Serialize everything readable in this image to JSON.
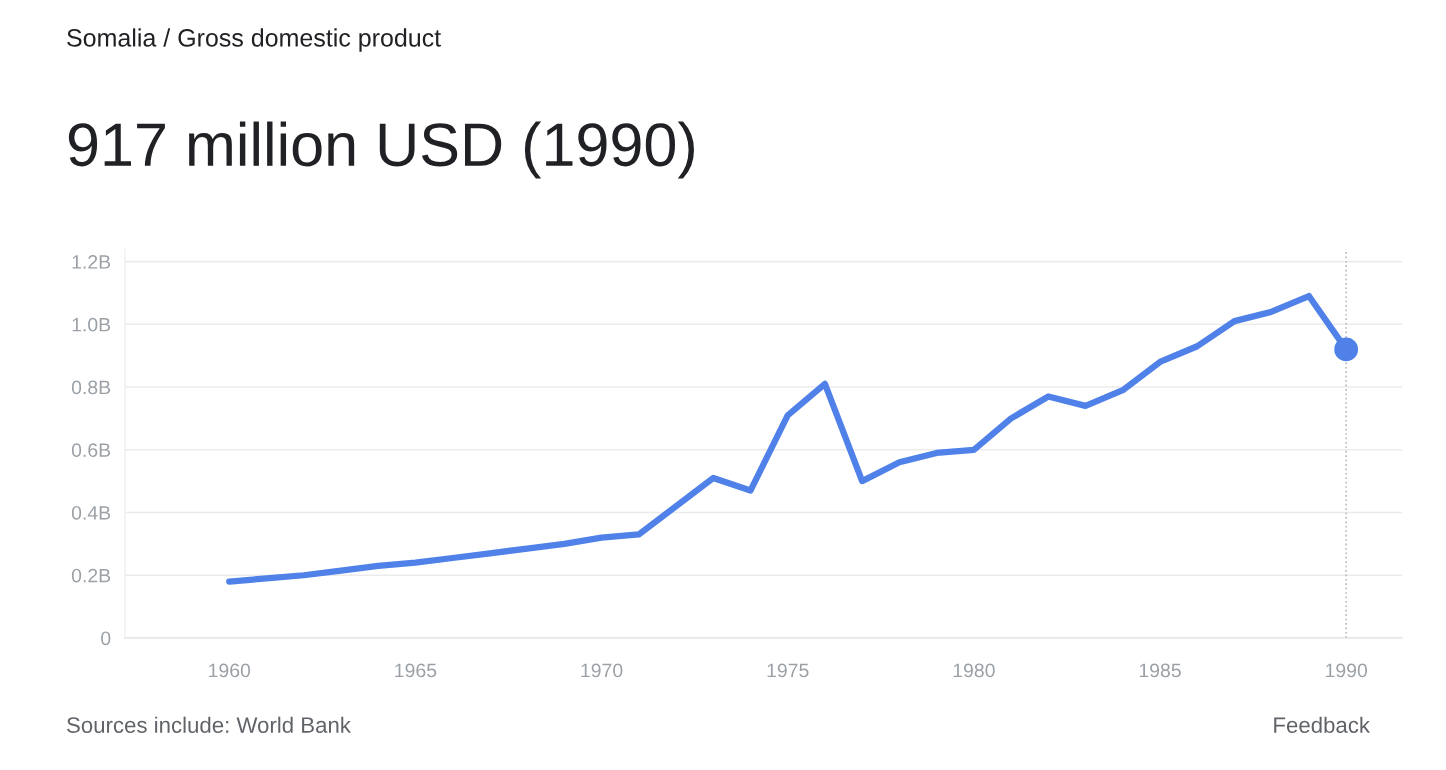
{
  "chart_data": {
    "type": "line",
    "subtitle": "Somalia / Gross domestic product",
    "title": "917 million USD (1990)",
    "x": [
      1960,
      1961,
      1962,
      1963,
      1964,
      1965,
      1966,
      1967,
      1968,
      1969,
      1970,
      1971,
      1972,
      1973,
      1974,
      1975,
      1976,
      1977,
      1978,
      1979,
      1980,
      1981,
      1982,
      1983,
      1984,
      1985,
      1986,
      1987,
      1988,
      1989,
      1990
    ],
    "series": [
      {
        "color": "#4f81e8",
        "marker": "none",
        "values": [
          0.18,
          0.19,
          0.2,
          0.215,
          0.23,
          0.24,
          0.255,
          0.27,
          0.285,
          0.3,
          0.32,
          0.33,
          0.42,
          0.51,
          0.47,
          0.71,
          0.81,
          0.5,
          0.56,
          0.59,
          0.6,
          0.7,
          0.77,
          0.74,
          0.79,
          0.88,
          0.93,
          1.01,
          1.04,
          1.09,
          0.92
        ]
      },
      {
        "type": "scatter",
        "color": "#4f81e8",
        "marker": "circle",
        "x": [
          1990
        ],
        "values": [
          0.92
        ]
      }
    ],
    "xlim": [
      1957.2,
      1991.5
    ],
    "xticks": [
      1960,
      1965,
      1970,
      1975,
      1980,
      1985,
      1990
    ],
    "ylim": [
      0,
      1.24
    ],
    "yticks": [
      {
        "value": 0,
        "label": "0"
      },
      {
        "value": 0.2,
        "label": "0.2B"
      },
      {
        "value": 0.4,
        "label": "0.4B"
      },
      {
        "value": 0.6,
        "label": "0.6B"
      },
      {
        "value": 0.8,
        "label": "0.8B"
      },
      {
        "value": 1.0,
        "label": "1.0B"
      },
      {
        "value": 1.2,
        "label": "1.2B"
      }
    ],
    "grid": "y",
    "legend": false,
    "ref_lines": [
      {
        "axis": "x",
        "value": 1990,
        "color": "#bbbbbb",
        "line_style": "dotted"
      }
    ],
    "annotations": [
      "Sources include: World Bank",
      "Feedback"
    ]
  }
}
